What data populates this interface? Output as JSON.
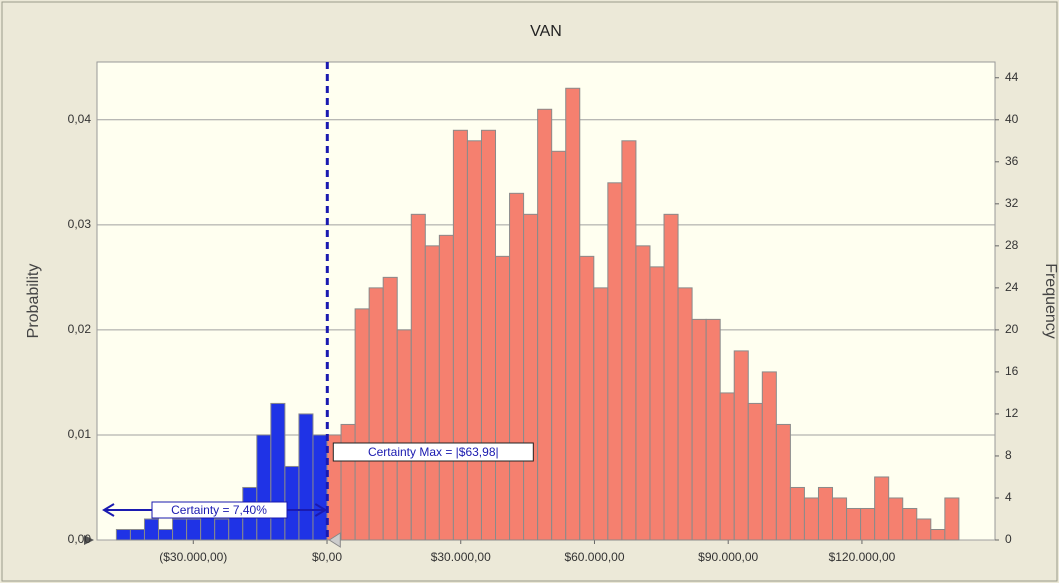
{
  "chart_data": {
    "type": "histogram",
    "title": "VAN",
    "ylabel": "Probability",
    "y2label": "Frequency",
    "bins": [
      -47250,
      -44100,
      -40950,
      -37800,
      -34650,
      -31500,
      -28350,
      -25200,
      -22050,
      -18900,
      -15750,
      -12600,
      -9450,
      -6300,
      -3150,
      0,
      3150,
      6300,
      9450,
      12600,
      15750,
      18900,
      22050,
      25200,
      28350,
      31500,
      34650,
      37800,
      40950,
      44100,
      47250,
      50400,
      53550,
      56700,
      59850,
      63000,
      66150,
      69300,
      72450,
      75600,
      78750,
      81900,
      85050,
      88200,
      91350,
      94500,
      97650,
      100800,
      103950,
      107100,
      110250,
      113400,
      116550,
      119700,
      122850,
      126000,
      129150,
      132300,
      135450,
      138600,
      141750
    ],
    "counts": [
      1,
      1,
      2,
      1,
      2,
      2,
      3,
      2,
      3,
      5,
      10,
      13,
      7,
      12,
      10,
      10,
      11,
      22,
      24,
      25,
      20,
      31,
      28,
      29,
      39,
      38,
      39,
      27,
      33,
      31,
      41,
      37,
      43,
      27,
      24,
      34,
      38,
      28,
      26,
      31,
      24,
      21,
      21,
      14,
      18,
      13,
      16,
      11,
      5,
      4,
      5,
      4,
      3,
      3,
      6,
      4,
      3,
      2,
      1,
      4
    ],
    "axis": "y2",
    "certainty_color": "#1f33e6",
    "color": "#f5806f",
    "edge_color": "#8a8a8a",
    "certainty_max": 63.98,
    "certainty_max_label": "Certainty Max = |$63,98|",
    "certainty_label": "Certainty = 7,40%",
    "xlim": [
      -51600,
      149850
    ],
    "xticks": [
      {
        "value": -30000,
        "label": "($30.000,00)"
      },
      {
        "value": 0,
        "label": "$0,00"
      },
      {
        "value": 30000,
        "label": "$30.000,00"
      },
      {
        "value": 60000,
        "label": "$60.000,00"
      },
      {
        "value": 90000,
        "label": "$90.000,00"
      },
      {
        "value": 120000,
        "label": "$120.000,00"
      }
    ],
    "ylim": [
      0,
      0.0455
    ],
    "yticks": [
      {
        "value": 0,
        "label": "0,00"
      },
      {
        "value": 0.01,
        "label": "0,01"
      },
      {
        "value": 0.02,
        "label": "0,02"
      },
      {
        "value": 0.03,
        "label": "0,03"
      },
      {
        "value": 0.04,
        "label": "0,04"
      }
    ],
    "y2lim": [
      0,
      45.5
    ],
    "y2ticks": [
      0,
      4,
      8,
      12,
      16,
      20,
      24,
      28,
      32,
      36,
      40,
      44
    ],
    "grid": true
  }
}
